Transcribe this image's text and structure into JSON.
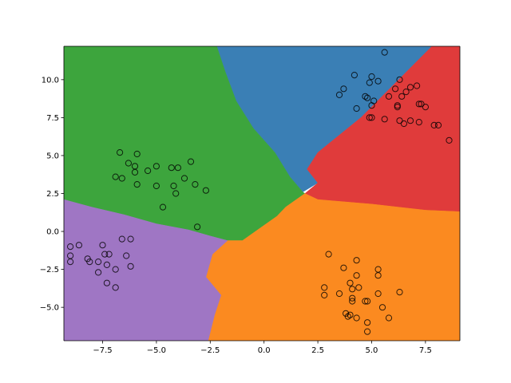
{
  "chart_data": {
    "type": "scatter",
    "title": "",
    "xlabel": "",
    "ylabel": "",
    "xlim": [
      -9.3,
      9.1
    ],
    "ylim": [
      -7.2,
      12.2
    ],
    "grid": false,
    "legend": "none",
    "x_ticks": [
      "−7.5",
      "−5.0",
      "−2.5",
      "0.0",
      "2.5",
      "5.0",
      "7.5"
    ],
    "x_tick_values": [
      -7.5,
      -5.0,
      -2.5,
      0.0,
      2.5,
      5.0,
      7.5
    ],
    "y_ticks": [
      "−5.0",
      "−2.5",
      "0.0",
      "2.5",
      "5.0",
      "7.5",
      "10.0"
    ],
    "y_tick_values": [
      -5.0,
      -2.5,
      0.0,
      2.5,
      5.0,
      7.5,
      10.0
    ],
    "regions": [
      {
        "class": "blue",
        "color": "#3a7fb5",
        "polygon": [
          [
            -2.2,
            12.2
          ],
          [
            7.8,
            12.2
          ],
          [
            4.5,
            7.5
          ],
          [
            2.5,
            5.2
          ],
          [
            2.0,
            4.1
          ],
          [
            2.5,
            3.2
          ],
          [
            1.8,
            2.6
          ],
          [
            1.2,
            3.6
          ],
          [
            0.5,
            5.2
          ],
          [
            -0.5,
            6.8
          ],
          [
            -1.3,
            8.6
          ],
          [
            -1.8,
            10.5
          ]
        ]
      },
      {
        "class": "red",
        "color": "#e03b3b",
        "polygon": [
          [
            7.8,
            12.2
          ],
          [
            9.1,
            12.2
          ],
          [
            9.1,
            1.3
          ],
          [
            7.5,
            1.4
          ],
          [
            5.0,
            1.8
          ],
          [
            2.5,
            2.1
          ],
          [
            1.9,
            2.5
          ],
          [
            2.5,
            3.2
          ],
          [
            2.0,
            4.1
          ],
          [
            2.5,
            5.2
          ],
          [
            4.5,
            7.5
          ]
        ]
      },
      {
        "class": "green",
        "color": "#3da53d",
        "polygon": [
          [
            -9.3,
            12.2
          ],
          [
            -2.2,
            12.2
          ],
          [
            -1.8,
            10.5
          ],
          [
            -1.3,
            8.6
          ],
          [
            -0.5,
            6.8
          ],
          [
            0.5,
            5.2
          ],
          [
            1.2,
            3.6
          ],
          [
            1.8,
            2.6
          ],
          [
            1.9,
            2.5
          ],
          [
            1.5,
            2.1
          ],
          [
            1.0,
            1.6
          ],
          [
            0.6,
            1.0
          ],
          [
            -0.2,
            0.2
          ],
          [
            -1.0,
            -0.6
          ],
          [
            -1.7,
            -0.6
          ],
          [
            -2.5,
            -0.3
          ],
          [
            -3.5,
            0.1
          ],
          [
            -5.0,
            0.5
          ],
          [
            -6.5,
            1.1
          ],
          [
            -8.0,
            1.6
          ],
          [
            -9.3,
            2.1
          ]
        ]
      },
      {
        "class": "orange",
        "color": "#fb8a20",
        "polygon": [
          [
            2.5,
            2.1
          ],
          [
            5.0,
            1.8
          ],
          [
            7.5,
            1.4
          ],
          [
            9.1,
            1.3
          ],
          [
            9.1,
            -7.2
          ],
          [
            -2.6,
            -7.2
          ],
          [
            -2.3,
            -5.5
          ],
          [
            -2.0,
            -4.2
          ],
          [
            -2.7,
            -3.0
          ],
          [
            -2.4,
            -1.5
          ],
          [
            -1.7,
            -0.6
          ],
          [
            -1.0,
            -0.6
          ],
          [
            -0.2,
            0.2
          ],
          [
            0.6,
            1.0
          ],
          [
            1.0,
            1.6
          ],
          [
            1.5,
            2.1
          ],
          [
            1.9,
            2.5
          ]
        ]
      },
      {
        "class": "purple",
        "color": "#9f76c4",
        "polygon": [
          [
            -9.3,
            2.1
          ],
          [
            -8.0,
            1.6
          ],
          [
            -6.5,
            1.1
          ],
          [
            -5.0,
            0.5
          ],
          [
            -3.5,
            0.1
          ],
          [
            -2.5,
            -0.3
          ],
          [
            -1.7,
            -0.6
          ],
          [
            -2.4,
            -1.5
          ],
          [
            -2.7,
            -3.0
          ],
          [
            -2.0,
            -4.2
          ],
          [
            -2.3,
            -5.5
          ],
          [
            -2.6,
            -7.2
          ],
          [
            -9.3,
            -7.2
          ]
        ]
      }
    ],
    "points": [
      [
        -6.7,
        5.2
      ],
      [
        -6.3,
        4.5
      ],
      [
        -5.9,
        5.1
      ],
      [
        -6.0,
        4.3
      ],
      [
        -6.0,
        3.9
      ],
      [
        -5.4,
        4.0
      ],
      [
        -5.0,
        4.3
      ],
      [
        -4.3,
        4.2
      ],
      [
        -4.0,
        4.2
      ],
      [
        -3.7,
        3.5
      ],
      [
        -3.4,
        4.6
      ],
      [
        -6.9,
        3.6
      ],
      [
        -6.6,
        3.5
      ],
      [
        -5.9,
        3.1
      ],
      [
        -5.0,
        3.0
      ],
      [
        -4.2,
        3.0
      ],
      [
        -4.1,
        2.5
      ],
      [
        -3.2,
        3.1
      ],
      [
        -2.7,
        2.7
      ],
      [
        -4.7,
        1.6
      ],
      [
        -3.1,
        0.3
      ],
      [
        -9.0,
        -1.0
      ],
      [
        -8.6,
        -0.9
      ],
      [
        -9.0,
        -1.6
      ],
      [
        -9.0,
        -2.0
      ],
      [
        -8.2,
        -1.8
      ],
      [
        -8.1,
        -2.0
      ],
      [
        -7.5,
        -0.9
      ],
      [
        -7.4,
        -1.5
      ],
      [
        -7.2,
        -1.5
      ],
      [
        -6.6,
        -0.5
      ],
      [
        -6.2,
        -0.5
      ],
      [
        -7.3,
        -2.2
      ],
      [
        -7.7,
        -2.0
      ],
      [
        -6.4,
        -1.6
      ],
      [
        -6.2,
        -2.3
      ],
      [
        -6.9,
        -2.5
      ],
      [
        -7.7,
        -2.7
      ],
      [
        -7.3,
        -3.4
      ],
      [
        -6.9,
        -3.7
      ],
      [
        5.6,
        11.8
      ],
      [
        6.3,
        10.0
      ],
      [
        3.5,
        9.0
      ],
      [
        3.7,
        9.4
      ],
      [
        4.2,
        10.3
      ],
      [
        4.9,
        9.8
      ],
      [
        5.0,
        10.2
      ],
      [
        5.3,
        9.9
      ],
      [
        6.1,
        9.4
      ],
      [
        4.7,
        8.9
      ],
      [
        4.8,
        8.8
      ],
      [
        4.3,
        8.1
      ],
      [
        5.0,
        8.3
      ],
      [
        5.1,
        8.6
      ],
      [
        5.8,
        8.9
      ],
      [
        6.4,
        8.9
      ],
      [
        6.6,
        9.2
      ],
      [
        6.8,
        9.5
      ],
      [
        7.1,
        9.6
      ],
      [
        6.2,
        8.3
      ],
      [
        6.2,
        8.2
      ],
      [
        7.2,
        8.4
      ],
      [
        7.3,
        8.4
      ],
      [
        7.5,
        8.2
      ],
      [
        5.0,
        7.5
      ],
      [
        4.9,
        7.5
      ],
      [
        5.6,
        7.4
      ],
      [
        6.3,
        7.3
      ],
      [
        6.5,
        7.1
      ],
      [
        6.8,
        7.3
      ],
      [
        7.2,
        7.2
      ],
      [
        7.9,
        7.0
      ],
      [
        8.1,
        7.0
      ],
      [
        8.6,
        6.0
      ],
      [
        3.0,
        -1.5
      ],
      [
        3.7,
        -2.4
      ],
      [
        4.3,
        -1.9
      ],
      [
        5.3,
        -2.5
      ],
      [
        5.3,
        -2.9
      ],
      [
        4.3,
        -2.9
      ],
      [
        2.8,
        -3.7
      ],
      [
        2.8,
        -4.2
      ],
      [
        3.5,
        -4.1
      ],
      [
        4.0,
        -3.4
      ],
      [
        4.1,
        -3.8
      ],
      [
        4.4,
        -3.7
      ],
      [
        5.3,
        -4.1
      ],
      [
        6.3,
        -4.0
      ],
      [
        4.1,
        -4.4
      ],
      [
        4.1,
        -4.6
      ],
      [
        4.8,
        -4.6
      ],
      [
        4.7,
        -4.6
      ],
      [
        5.5,
        -5.0
      ],
      [
        3.8,
        -5.4
      ],
      [
        4.0,
        -5.5
      ],
      [
        3.9,
        -5.6
      ],
      [
        4.3,
        -5.7
      ],
      [
        4.8,
        -6.0
      ],
      [
        5.8,
        -5.7
      ],
      [
        4.8,
        -6.6
      ]
    ]
  }
}
